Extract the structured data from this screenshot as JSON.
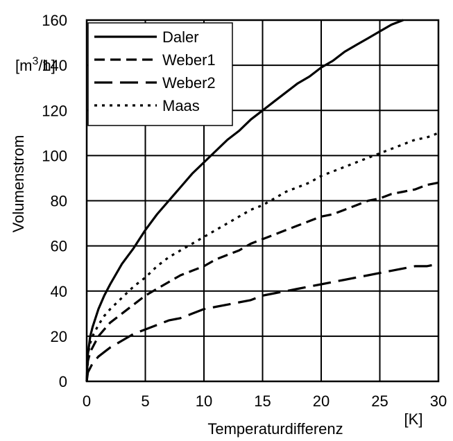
{
  "chart_data": {
    "type": "line",
    "title": "",
    "xlabel": "Temperaturdifferenz",
    "xunit": "[K]",
    "ylabel": "Volumenstrom",
    "yunit_base": "[m",
    "yunit_sup": "3",
    "yunit_tail": "/h]",
    "xlim": [
      0,
      30
    ],
    "ylim": [
      0,
      160
    ],
    "xticks": [
      0,
      5,
      10,
      15,
      20,
      25,
      30
    ],
    "yticks": [
      0,
      20,
      40,
      60,
      80,
      100,
      120,
      140,
      160
    ],
    "grid": true,
    "legend_position": "top-left",
    "series": [
      {
        "name": "Daler",
        "style": "solid",
        "points": [
          [
            0,
            0
          ],
          [
            0.1,
            12
          ],
          [
            0.3,
            20
          ],
          [
            0.5,
            24
          ],
          [
            1,
            32
          ],
          [
            1.5,
            38
          ],
          [
            2,
            43
          ],
          [
            3,
            52
          ],
          [
            4,
            59
          ],
          [
            5,
            67
          ],
          [
            6,
            74
          ],
          [
            7,
            80
          ],
          [
            8,
            86
          ],
          [
            9,
            92
          ],
          [
            10,
            97
          ],
          [
            11,
            102
          ],
          [
            12,
            107
          ],
          [
            13,
            111
          ],
          [
            14,
            116
          ],
          [
            15,
            120
          ],
          [
            16,
            124
          ],
          [
            17,
            128
          ],
          [
            18,
            132
          ],
          [
            19,
            135
          ],
          [
            20,
            139
          ],
          [
            21,
            142
          ],
          [
            22,
            146
          ],
          [
            23,
            149
          ],
          [
            24,
            152
          ],
          [
            25,
            155
          ],
          [
            26,
            158
          ],
          [
            27,
            160
          ]
        ]
      },
      {
        "name": "Weber1",
        "style": "dash",
        "points": [
          [
            0,
            0
          ],
          [
            0.1,
            9
          ],
          [
            0.3,
            13
          ],
          [
            0.5,
            15
          ],
          [
            1,
            20
          ],
          [
            1.5,
            23
          ],
          [
            2,
            26
          ],
          [
            3,
            30
          ],
          [
            4,
            34
          ],
          [
            5,
            38
          ],
          [
            6,
            41
          ],
          [
            7,
            44
          ],
          [
            8,
            47
          ],
          [
            9,
            49
          ],
          [
            10,
            51
          ],
          [
            11,
            54
          ],
          [
            12,
            56
          ],
          [
            13,
            58
          ],
          [
            14,
            61
          ],
          [
            15,
            63
          ],
          [
            16,
            65
          ],
          [
            17,
            67
          ],
          [
            18,
            69
          ],
          [
            19,
            71
          ],
          [
            20,
            73
          ],
          [
            21,
            74
          ],
          [
            22,
            76
          ],
          [
            23,
            78
          ],
          [
            24,
            80
          ],
          [
            25,
            81
          ],
          [
            26,
            83
          ],
          [
            27,
            84
          ],
          [
            28,
            85
          ],
          [
            29,
            87
          ],
          [
            30,
            88
          ]
        ]
      },
      {
        "name": "Weber2",
        "style": "longdash",
        "points": [
          [
            0,
            0
          ],
          [
            0.1,
            4
          ],
          [
            0.3,
            6
          ],
          [
            0.5,
            8
          ],
          [
            1,
            11
          ],
          [
            1.5,
            13
          ],
          [
            2,
            15
          ],
          [
            3,
            18
          ],
          [
            4,
            21
          ],
          [
            5,
            23
          ],
          [
            6,
            25
          ],
          [
            7,
            27
          ],
          [
            8,
            28
          ],
          [
            9,
            30
          ],
          [
            10,
            32
          ],
          [
            11,
            33
          ],
          [
            12,
            34
          ],
          [
            13,
            35
          ],
          [
            14,
            36
          ],
          [
            15,
            38
          ],
          [
            16,
            39
          ],
          [
            17,
            40
          ],
          [
            18,
            41
          ],
          [
            19,
            42
          ],
          [
            20,
            43
          ],
          [
            21,
            44
          ],
          [
            22,
            45
          ],
          [
            23,
            46
          ],
          [
            24,
            47
          ],
          [
            25,
            48
          ],
          [
            26,
            49
          ],
          [
            27,
            50
          ],
          [
            28,
            51
          ],
          [
            29,
            51
          ],
          [
            30,
            52
          ]
        ]
      },
      {
        "name": "Maas",
        "style": "dot",
        "points": [
          [
            0,
            0
          ],
          [
            0.1,
            12
          ],
          [
            0.3,
            17
          ],
          [
            0.5,
            20
          ],
          [
            1,
            25
          ],
          [
            1.5,
            29
          ],
          [
            2,
            32
          ],
          [
            3,
            37
          ],
          [
            4,
            42
          ],
          [
            5,
            46
          ],
          [
            6,
            51
          ],
          [
            7,
            55
          ],
          [
            8,
            58
          ],
          [
            9,
            61
          ],
          [
            10,
            64
          ],
          [
            11,
            67
          ],
          [
            12,
            70
          ],
          [
            13,
            73
          ],
          [
            14,
            76
          ],
          [
            15,
            78
          ],
          [
            16,
            81
          ],
          [
            17,
            84
          ],
          [
            18,
            86
          ],
          [
            19,
            88
          ],
          [
            20,
            91
          ],
          [
            21,
            93
          ],
          [
            22,
            95
          ],
          [
            23,
            97
          ],
          [
            24,
            99
          ],
          [
            25,
            101
          ],
          [
            26,
            103
          ],
          [
            27,
            105
          ],
          [
            28,
            107
          ],
          [
            29,
            108
          ],
          [
            30,
            110
          ]
        ]
      }
    ]
  }
}
